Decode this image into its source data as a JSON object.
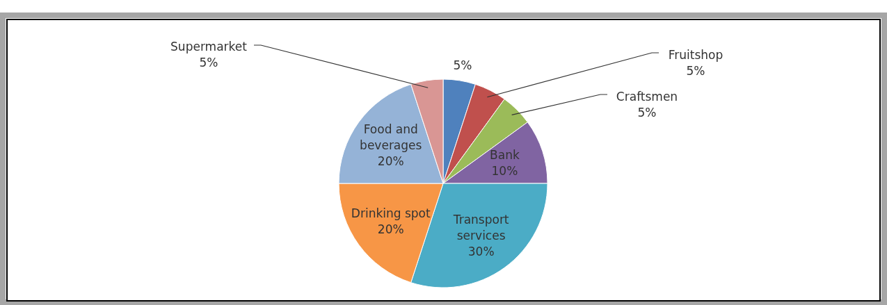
{
  "chart_data": {
    "type": "pie",
    "categories": [
      null,
      "Fruitshop",
      "Craftsmen",
      "Bank",
      "Transport services",
      "Drinking spot",
      "Food and beverages",
      "Supermarket"
    ],
    "values": [
      5,
      5,
      5,
      10,
      30,
      20,
      20,
      5
    ],
    "value_labels": [
      "5%",
      "5%",
      "5%",
      "10%",
      "30%",
      "20%",
      "20%",
      "5%"
    ],
    "colors": [
      "#4f81bd",
      "#c0504d",
      "#9bbb59",
      "#8064a2",
      "#4bacc6",
      "#f79646",
      "#95b3d7",
      "#d99694"
    ]
  }
}
